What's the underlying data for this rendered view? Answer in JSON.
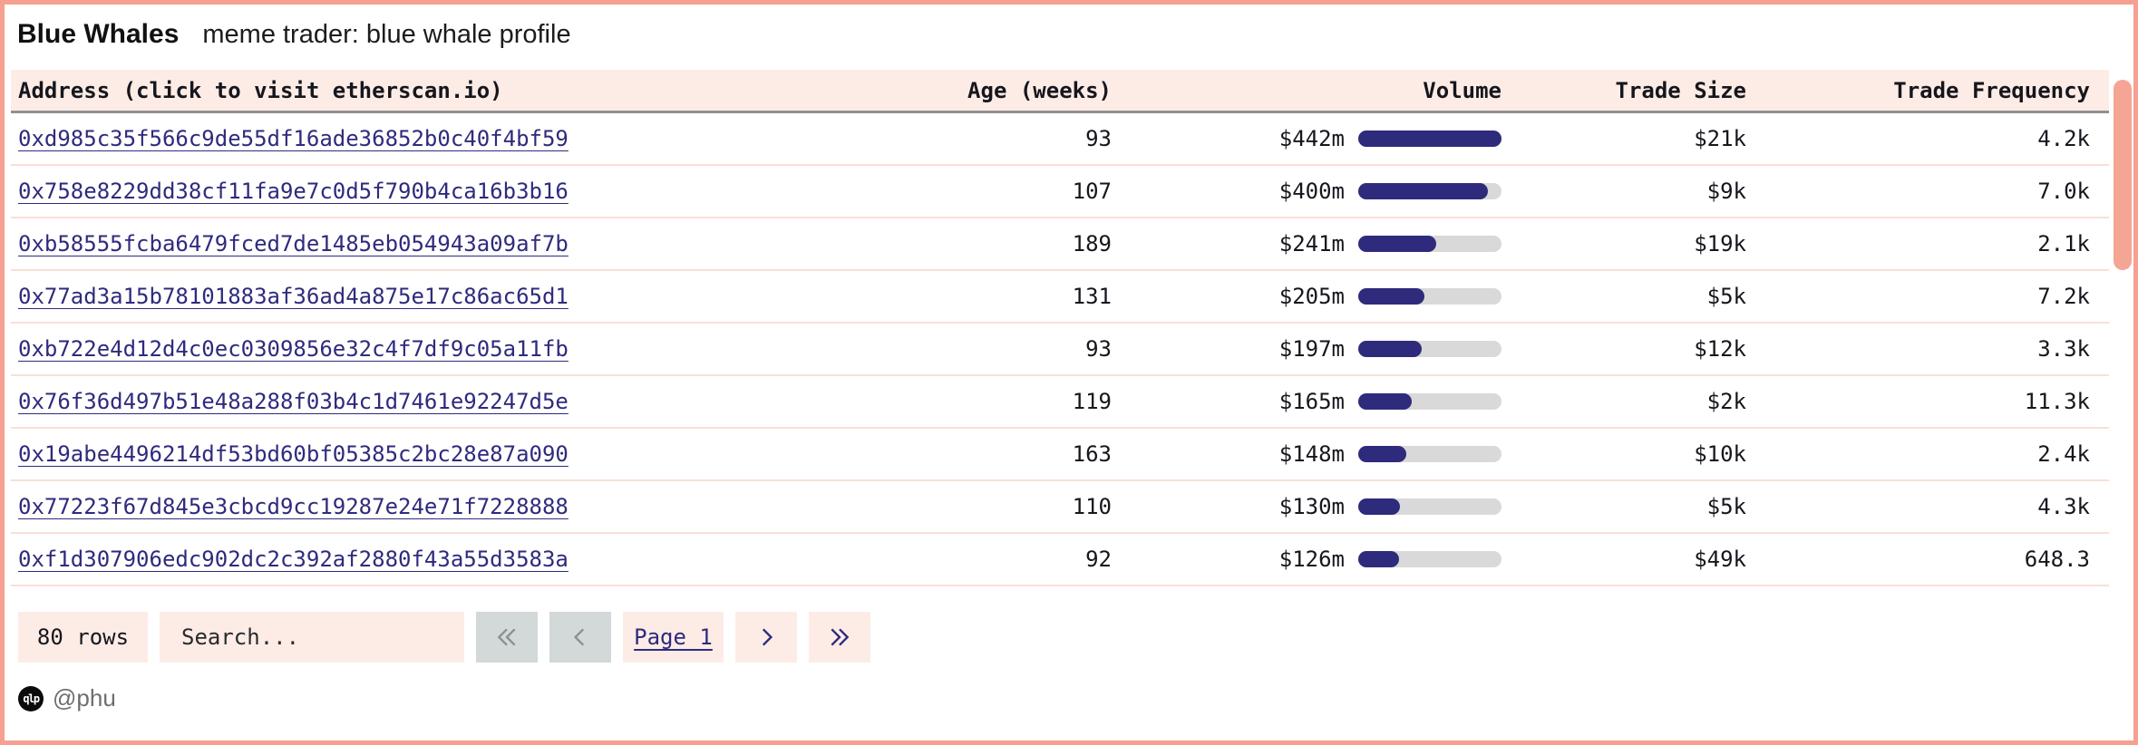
{
  "page": {
    "title": "Blue Whales",
    "subtitle": "meme trader: blue whale profile"
  },
  "table": {
    "columns": [
      "Address (click to visit etherscan.io)",
      "Age (weeks)",
      "Volume",
      "Trade Size",
      "Trade Frequency"
    ],
    "volume_max_millions": 442,
    "rows": [
      {
        "address": "0xd985c35f566c9de55df16ade36852b0c40f4bf59",
        "age": "93",
        "volume": "$442m",
        "volume_m": 442,
        "trade_size": "$21k",
        "trade_frequency": "4.2k"
      },
      {
        "address": "0x758e8229dd38cf11fa9e7c0d5f790b4ca16b3b16",
        "age": "107",
        "volume": "$400m",
        "volume_m": 400,
        "trade_size": "$9k",
        "trade_frequency": "7.0k"
      },
      {
        "address": "0xb58555fcba6479fced7de1485eb054943a09af7b",
        "age": "189",
        "volume": "$241m",
        "volume_m": 241,
        "trade_size": "$19k",
        "trade_frequency": "2.1k"
      },
      {
        "address": "0x77ad3a15b78101883af36ad4a875e17c86ac65d1",
        "age": "131",
        "volume": "$205m",
        "volume_m": 205,
        "trade_size": "$5k",
        "trade_frequency": "7.2k"
      },
      {
        "address": "0xb722e4d12d4c0ec0309856e32c4f7df9c05a11fb",
        "age": "93",
        "volume": "$197m",
        "volume_m": 197,
        "trade_size": "$12k",
        "trade_frequency": "3.3k"
      },
      {
        "address": "0x76f36d497b51e48a288f03b4c1d7461e92247d5e",
        "age": "119",
        "volume": "$165m",
        "volume_m": 165,
        "trade_size": "$2k",
        "trade_frequency": "11.3k"
      },
      {
        "address": "0x19abe4496214df53bd60bf05385c2bc28e87a090",
        "age": "163",
        "volume": "$148m",
        "volume_m": 148,
        "trade_size": "$10k",
        "trade_frequency": "2.4k"
      },
      {
        "address": "0x77223f67d845e3cbcd9cc19287e24e71f7228888",
        "age": "110",
        "volume": "$130m",
        "volume_m": 130,
        "trade_size": "$5k",
        "trade_frequency": "4.3k"
      },
      {
        "address": "0xf1d307906edc902dc2c392af2880f43a55d3583a",
        "age": "92",
        "volume": "$126m",
        "volume_m": 126,
        "trade_size": "$49k",
        "trade_frequency": "648.3"
      }
    ]
  },
  "footer": {
    "rows_label": "80 rows",
    "search_placeholder": "Search...",
    "page_label": "Page 1"
  },
  "branding": {
    "logo_text": "qlp",
    "handle": "@phu"
  },
  "colors": {
    "frame": "#f5a090",
    "header_bg": "#fdece6",
    "chip_bg": "#fdece6",
    "row_divider": "#fadfd8",
    "header_rule": "#909090",
    "link_navy": "#2e2b7d",
    "bar_fill": "#2e2b7d",
    "bar_track": "#d9d9d9",
    "text": "#16161d",
    "muted_text": "#6e6e6e",
    "disabled_btn_bg": "#d3d8d8",
    "disabled_btn_icon": "#8b9293",
    "scrollbar_thumb": "#f5a593"
  }
}
